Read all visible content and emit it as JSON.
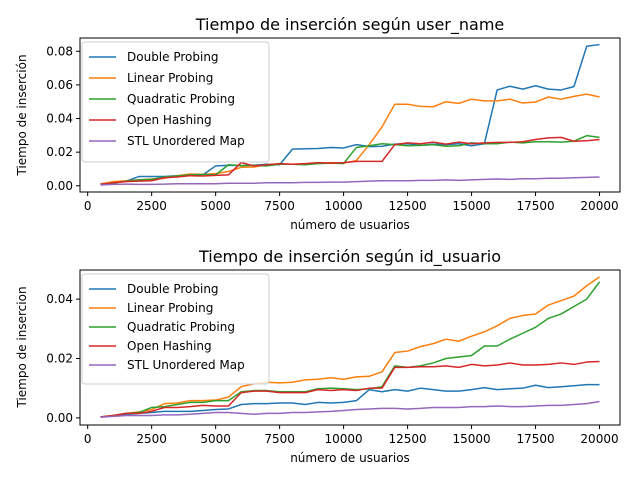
{
  "chart_data": [
    {
      "type": "line",
      "title": "Tiempo de inserción según user_name",
      "xlabel": "número de usuarios",
      "ylabel": "Tiempo de inserción",
      "xlim": [
        -300,
        20800
      ],
      "ylim": [
        -0.0037,
        0.0879
      ],
      "xticks": [
        0,
        2500,
        5000,
        7500,
        10000,
        12500,
        15000,
        17500,
        20000
      ],
      "xtick_labels": [
        "0",
        "2500",
        "5000",
        "7500",
        "10000",
        "12500",
        "15000",
        "17500",
        "20000"
      ],
      "yticks": [
        0.0,
        0.02,
        0.04,
        0.06,
        0.08
      ],
      "ytick_labels": [
        "0.00",
        "0.02",
        "0.04",
        "0.06",
        "0.08"
      ],
      "grid": false,
      "legend": "top-left",
      "x": [
        500,
        1000,
        1500,
        2000,
        2500,
        3000,
        3500,
        4000,
        4500,
        5000,
        5500,
        6000,
        6500,
        7000,
        7500,
        8000,
        8500,
        9000,
        9500,
        10000,
        10500,
        11000,
        11500,
        12000,
        12500,
        13000,
        13500,
        14000,
        14500,
        15000,
        15500,
        16000,
        16500,
        17000,
        17500,
        18000,
        18500,
        19000,
        19500,
        20000
      ],
      "series": [
        {
          "name": "Double Probing",
          "color": "#1f77b4",
          "values": [
            0.0012,
            0.002,
            0.0028,
            0.0055,
            0.0055,
            0.0055,
            0.006,
            0.0062,
            0.0065,
            0.0118,
            0.0122,
            0.012,
            0.0122,
            0.0128,
            0.0125,
            0.0218,
            0.022,
            0.0222,
            0.0228,
            0.0225,
            0.0245,
            0.0233,
            0.0235,
            0.0248,
            0.025,
            0.024,
            0.0248,
            0.0245,
            0.025,
            0.0238,
            0.025,
            0.057,
            0.0592,
            0.0575,
            0.0595,
            0.0575,
            0.057,
            0.059,
            0.083,
            0.084
          ]
        },
        {
          "name": "Linear Probing",
          "color": "#ff7f0e",
          "values": [
            0.001,
            0.0025,
            0.003,
            0.0035,
            0.004,
            0.0045,
            0.006,
            0.007,
            0.0068,
            0.0072,
            0.0085,
            0.011,
            0.0112,
            0.0125,
            0.0128,
            0.0128,
            0.013,
            0.0135,
            0.0138,
            0.0135,
            0.015,
            0.0245,
            0.035,
            0.0485,
            0.0485,
            0.0472,
            0.047,
            0.05,
            0.049,
            0.0515,
            0.0505,
            0.0505,
            0.0515,
            0.0492,
            0.0498,
            0.0528,
            0.0515,
            0.0532,
            0.0545,
            0.0528
          ]
        },
        {
          "name": "Quadratic Probing",
          "color": "#2ca02c",
          "values": [
            0.0005,
            0.0015,
            0.0028,
            0.0035,
            0.0038,
            0.0052,
            0.0058,
            0.0065,
            0.0068,
            0.0065,
            0.0125,
            0.012,
            0.0122,
            0.0118,
            0.0128,
            0.0128,
            0.0125,
            0.0132,
            0.0135,
            0.0132,
            0.0228,
            0.0238,
            0.025,
            0.0245,
            0.0238,
            0.024,
            0.0245,
            0.0235,
            0.0238,
            0.0255,
            0.025,
            0.025,
            0.026,
            0.0255,
            0.0262,
            0.0262,
            0.026,
            0.0265,
            0.0298,
            0.0288
          ]
        },
        {
          "name": "Open Hashing",
          "color": "#d62728",
          "values": [
            0.0008,
            0.0018,
            0.0025,
            0.0028,
            0.003,
            0.0048,
            0.0052,
            0.006,
            0.0058,
            0.0062,
            0.0065,
            0.0138,
            0.0118,
            0.0125,
            0.0132,
            0.0128,
            0.0132,
            0.0138,
            0.0135,
            0.0138,
            0.0145,
            0.0145,
            0.0145,
            0.0245,
            0.0255,
            0.025,
            0.026,
            0.0248,
            0.026,
            0.025,
            0.0255,
            0.0258,
            0.0258,
            0.0262,
            0.0275,
            0.0285,
            0.0288,
            0.0265,
            0.0268,
            0.0275
          ]
        },
        {
          "name": "STL Unordered Map",
          "color": "#9467bd",
          "values": [
            0.0005,
            0.0008,
            0.001,
            0.0008,
            0.0008,
            0.001,
            0.0012,
            0.0012,
            0.0012,
            0.0012,
            0.0015,
            0.0015,
            0.0015,
            0.0018,
            0.0018,
            0.0018,
            0.002,
            0.002,
            0.0022,
            0.0022,
            0.0025,
            0.0028,
            0.003,
            0.003,
            0.003,
            0.0032,
            0.0032,
            0.0035,
            0.0032,
            0.0035,
            0.0038,
            0.004,
            0.0038,
            0.0042,
            0.0042,
            0.0045,
            0.0045,
            0.0048,
            0.005,
            0.0052
          ]
        }
      ]
    },
    {
      "type": "line",
      "title": "Tiempo de inserción según id_usuario",
      "xlabel": "número de usuarios",
      "ylabel": "Tiempo de insercion",
      "xlim": [
        -300,
        20800
      ],
      "ylim": [
        -0.0024,
        0.0498
      ],
      "xticks": [
        0,
        2500,
        5000,
        7500,
        10000,
        12500,
        15000,
        17500,
        20000
      ],
      "xtick_labels": [
        "0",
        "2500",
        "5000",
        "7500",
        "10000",
        "12500",
        "15000",
        "17500",
        "20000"
      ],
      "yticks": [
        0.0,
        0.02,
        0.04
      ],
      "ytick_labels": [
        "0.00",
        "0.02",
        "0.04"
      ],
      "grid": false,
      "legend": "top-left",
      "x": [
        500,
        1000,
        1500,
        2000,
        2500,
        3000,
        3500,
        4000,
        4500,
        5000,
        5500,
        6000,
        6500,
        7000,
        7500,
        8000,
        8500,
        9000,
        9500,
        10000,
        10500,
        11000,
        11500,
        12000,
        12500,
        13000,
        13500,
        14000,
        14500,
        15000,
        15500,
        16000,
        16500,
        17000,
        17500,
        18000,
        18500,
        19000,
        19500,
        20000
      ],
      "series": [
        {
          "name": "Double Probing",
          "color": "#1f77b4",
          "values": [
            0.0003,
            0.0008,
            0.0012,
            0.0015,
            0.0018,
            0.0022,
            0.0022,
            0.0022,
            0.0025,
            0.0028,
            0.003,
            0.0045,
            0.0048,
            0.0048,
            0.005,
            0.005,
            0.0045,
            0.0052,
            0.005,
            0.0052,
            0.0058,
            0.0095,
            0.0088,
            0.0095,
            0.009,
            0.01,
            0.0095,
            0.009,
            0.009,
            0.0095,
            0.0102,
            0.0095,
            0.0098,
            0.01,
            0.011,
            0.0102,
            0.0105,
            0.0108,
            0.0112,
            0.0112
          ]
        },
        {
          "name": "Linear Probing",
          "color": "#ff7f0e",
          "values": [
            0.0003,
            0.0008,
            0.0015,
            0.002,
            0.0028,
            0.0048,
            0.005,
            0.0058,
            0.0058,
            0.006,
            0.007,
            0.0105,
            0.0115,
            0.012,
            0.0118,
            0.012,
            0.0128,
            0.013,
            0.0135,
            0.013,
            0.0138,
            0.014,
            0.0155,
            0.022,
            0.0225,
            0.024,
            0.025,
            0.0265,
            0.0258,
            0.0275,
            0.029,
            0.031,
            0.0335,
            0.0345,
            0.035,
            0.038,
            0.0395,
            0.041,
            0.0445,
            0.0475
          ]
        },
        {
          "name": "Quadratic Probing",
          "color": "#2ca02c",
          "values": [
            0.0003,
            0.0008,
            0.0015,
            0.0018,
            0.0035,
            0.0038,
            0.0045,
            0.0052,
            0.0052,
            0.0058,
            0.0058,
            0.0088,
            0.0092,
            0.0092,
            0.0088,
            0.0088,
            0.0088,
            0.0098,
            0.01,
            0.0098,
            0.0095,
            0.0098,
            0.0105,
            0.0175,
            0.017,
            0.0175,
            0.0185,
            0.02,
            0.0205,
            0.021,
            0.0242,
            0.0242,
            0.0265,
            0.0285,
            0.0305,
            0.0335,
            0.035,
            0.0375,
            0.04,
            0.0458
          ]
        },
        {
          "name": "Open Hashing",
          "color": "#d62728",
          "values": [
            0.0003,
            0.0008,
            0.0015,
            0.0015,
            0.0022,
            0.0035,
            0.0035,
            0.0038,
            0.0042,
            0.004,
            0.004,
            0.0085,
            0.009,
            0.009,
            0.0085,
            0.0085,
            0.0085,
            0.0095,
            0.0092,
            0.0095,
            0.0092,
            0.01,
            0.01,
            0.017,
            0.017,
            0.0172,
            0.0172,
            0.0175,
            0.017,
            0.018,
            0.0175,
            0.0178,
            0.0185,
            0.0178,
            0.0178,
            0.018,
            0.0185,
            0.018,
            0.0188,
            0.019
          ]
        },
        {
          "name": "STL Unordered Map",
          "color": "#9467bd",
          "values": [
            0.0002,
            0.0005,
            0.0008,
            0.0008,
            0.0008,
            0.001,
            0.001,
            0.0012,
            0.0015,
            0.0018,
            0.0018,
            0.0015,
            0.0012,
            0.0015,
            0.0015,
            0.0018,
            0.0018,
            0.002,
            0.0022,
            0.0025,
            0.0028,
            0.003,
            0.0032,
            0.0032,
            0.003,
            0.0032,
            0.0035,
            0.0035,
            0.0035,
            0.0038,
            0.0038,
            0.004,
            0.0038,
            0.0038,
            0.004,
            0.0042,
            0.0042,
            0.0045,
            0.0048,
            0.0055
          ]
        }
      ]
    }
  ]
}
